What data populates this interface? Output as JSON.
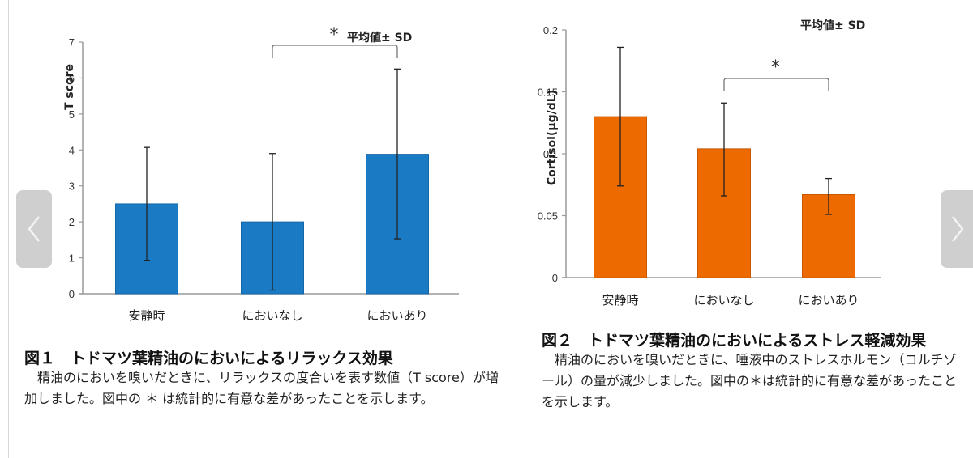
{
  "chart_data": [
    {
      "type": "bar",
      "title": "",
      "categories": [
        "安静時",
        "においなし",
        "においあり"
      ],
      "values": [
        2.5,
        2.0,
        3.88
      ],
      "error_low": [
        0.93,
        0.1,
        1.53
      ],
      "error_high": [
        4.07,
        3.9,
        6.25
      ],
      "xlabel": "",
      "ylabel": "T score",
      "ylim": [
        0,
        7
      ],
      "yticks": [
        "0",
        "1",
        "2",
        "3",
        "4",
        "5",
        "6",
        "7"
      ],
      "ytick_values": [
        0,
        1,
        2,
        3,
        4,
        5,
        6,
        7
      ],
      "grid": false,
      "legend": "none",
      "annotation": "平均値± SD",
      "significance": {
        "from": 1,
        "to": 2,
        "label": "*"
      },
      "color": "#1a7bc4",
      "caption": {
        "title": "図１　トドマツ葉精油のにおいによるリラックス効果",
        "body": "　精油のにおいを嗅いだときに、リラックスの度合いを表す数値（T score）が増加しました。図中の ＊ は統計的に有意な差があったことを示します。"
      }
    },
    {
      "type": "bar",
      "title": "",
      "categories": [
        "安静時",
        "においなし",
        "においあり"
      ],
      "values": [
        0.13,
        0.104,
        0.067
      ],
      "error_low": [
        0.074,
        0.066,
        0.051
      ],
      "error_high": [
        0.186,
        0.141,
        0.08
      ],
      "xlabel": "",
      "ylabel": "Cortisol(μg/dL)",
      "ylim": [
        0,
        0.2
      ],
      "yticks": [
        "0",
        "0.05",
        "0.1",
        "0.15",
        "0.2"
      ],
      "ytick_values": [
        0,
        0.05,
        0.1,
        0.15,
        0.2
      ],
      "grid": false,
      "legend": "none",
      "annotation": "平均値± SD",
      "significance": {
        "from": 1,
        "to": 2,
        "label": "*"
      },
      "color": "#ec6a00",
      "caption": {
        "title": "図２　トドマツ葉精油のにおいによるストレス軽減効果",
        "body": "　精油のにおいを嗅いだときに、唾液中のストレスホルモン（コルチゾール）の量が減少しました。図中の＊は統計的に有意な差があったことを示します。"
      }
    }
  ],
  "nav": {
    "prev_icon": "chevron-left-icon",
    "next_icon": "chevron-right-icon"
  }
}
